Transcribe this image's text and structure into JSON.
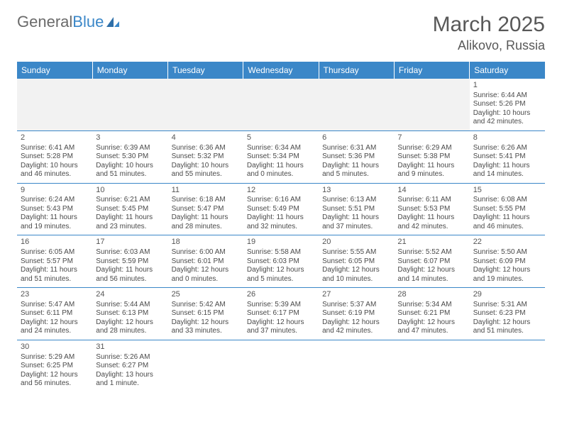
{
  "logo": {
    "part1": "General",
    "part2": "Blue"
  },
  "title": "March 2025",
  "location": "Alikovo, Russia",
  "header_color": "#3b87c8",
  "weekdays": [
    "Sunday",
    "Monday",
    "Tuesday",
    "Wednesday",
    "Thursday",
    "Friday",
    "Saturday"
  ],
  "weeks": [
    [
      null,
      null,
      null,
      null,
      null,
      null,
      {
        "n": "1",
        "sr": "Sunrise: 6:44 AM",
        "ss": "Sunset: 5:26 PM",
        "d1": "Daylight: 10 hours",
        "d2": "and 42 minutes."
      }
    ],
    [
      {
        "n": "2",
        "sr": "Sunrise: 6:41 AM",
        "ss": "Sunset: 5:28 PM",
        "d1": "Daylight: 10 hours",
        "d2": "and 46 minutes."
      },
      {
        "n": "3",
        "sr": "Sunrise: 6:39 AM",
        "ss": "Sunset: 5:30 PM",
        "d1": "Daylight: 10 hours",
        "d2": "and 51 minutes."
      },
      {
        "n": "4",
        "sr": "Sunrise: 6:36 AM",
        "ss": "Sunset: 5:32 PM",
        "d1": "Daylight: 10 hours",
        "d2": "and 55 minutes."
      },
      {
        "n": "5",
        "sr": "Sunrise: 6:34 AM",
        "ss": "Sunset: 5:34 PM",
        "d1": "Daylight: 11 hours",
        "d2": "and 0 minutes."
      },
      {
        "n": "6",
        "sr": "Sunrise: 6:31 AM",
        "ss": "Sunset: 5:36 PM",
        "d1": "Daylight: 11 hours",
        "d2": "and 5 minutes."
      },
      {
        "n": "7",
        "sr": "Sunrise: 6:29 AM",
        "ss": "Sunset: 5:38 PM",
        "d1": "Daylight: 11 hours",
        "d2": "and 9 minutes."
      },
      {
        "n": "8",
        "sr": "Sunrise: 6:26 AM",
        "ss": "Sunset: 5:41 PM",
        "d1": "Daylight: 11 hours",
        "d2": "and 14 minutes."
      }
    ],
    [
      {
        "n": "9",
        "sr": "Sunrise: 6:24 AM",
        "ss": "Sunset: 5:43 PM",
        "d1": "Daylight: 11 hours",
        "d2": "and 19 minutes."
      },
      {
        "n": "10",
        "sr": "Sunrise: 6:21 AM",
        "ss": "Sunset: 5:45 PM",
        "d1": "Daylight: 11 hours",
        "d2": "and 23 minutes."
      },
      {
        "n": "11",
        "sr": "Sunrise: 6:18 AM",
        "ss": "Sunset: 5:47 PM",
        "d1": "Daylight: 11 hours",
        "d2": "and 28 minutes."
      },
      {
        "n": "12",
        "sr": "Sunrise: 6:16 AM",
        "ss": "Sunset: 5:49 PM",
        "d1": "Daylight: 11 hours",
        "d2": "and 32 minutes."
      },
      {
        "n": "13",
        "sr": "Sunrise: 6:13 AM",
        "ss": "Sunset: 5:51 PM",
        "d1": "Daylight: 11 hours",
        "d2": "and 37 minutes."
      },
      {
        "n": "14",
        "sr": "Sunrise: 6:11 AM",
        "ss": "Sunset: 5:53 PM",
        "d1": "Daylight: 11 hours",
        "d2": "and 42 minutes."
      },
      {
        "n": "15",
        "sr": "Sunrise: 6:08 AM",
        "ss": "Sunset: 5:55 PM",
        "d1": "Daylight: 11 hours",
        "d2": "and 46 minutes."
      }
    ],
    [
      {
        "n": "16",
        "sr": "Sunrise: 6:05 AM",
        "ss": "Sunset: 5:57 PM",
        "d1": "Daylight: 11 hours",
        "d2": "and 51 minutes."
      },
      {
        "n": "17",
        "sr": "Sunrise: 6:03 AM",
        "ss": "Sunset: 5:59 PM",
        "d1": "Daylight: 11 hours",
        "d2": "and 56 minutes."
      },
      {
        "n": "18",
        "sr": "Sunrise: 6:00 AM",
        "ss": "Sunset: 6:01 PM",
        "d1": "Daylight: 12 hours",
        "d2": "and 0 minutes."
      },
      {
        "n": "19",
        "sr": "Sunrise: 5:58 AM",
        "ss": "Sunset: 6:03 PM",
        "d1": "Daylight: 12 hours",
        "d2": "and 5 minutes."
      },
      {
        "n": "20",
        "sr": "Sunrise: 5:55 AM",
        "ss": "Sunset: 6:05 PM",
        "d1": "Daylight: 12 hours",
        "d2": "and 10 minutes."
      },
      {
        "n": "21",
        "sr": "Sunrise: 5:52 AM",
        "ss": "Sunset: 6:07 PM",
        "d1": "Daylight: 12 hours",
        "d2": "and 14 minutes."
      },
      {
        "n": "22",
        "sr": "Sunrise: 5:50 AM",
        "ss": "Sunset: 6:09 PM",
        "d1": "Daylight: 12 hours",
        "d2": "and 19 minutes."
      }
    ],
    [
      {
        "n": "23",
        "sr": "Sunrise: 5:47 AM",
        "ss": "Sunset: 6:11 PM",
        "d1": "Daylight: 12 hours",
        "d2": "and 24 minutes."
      },
      {
        "n": "24",
        "sr": "Sunrise: 5:44 AM",
        "ss": "Sunset: 6:13 PM",
        "d1": "Daylight: 12 hours",
        "d2": "and 28 minutes."
      },
      {
        "n": "25",
        "sr": "Sunrise: 5:42 AM",
        "ss": "Sunset: 6:15 PM",
        "d1": "Daylight: 12 hours",
        "d2": "and 33 minutes."
      },
      {
        "n": "26",
        "sr": "Sunrise: 5:39 AM",
        "ss": "Sunset: 6:17 PM",
        "d1": "Daylight: 12 hours",
        "d2": "and 37 minutes."
      },
      {
        "n": "27",
        "sr": "Sunrise: 5:37 AM",
        "ss": "Sunset: 6:19 PM",
        "d1": "Daylight: 12 hours",
        "d2": "and 42 minutes."
      },
      {
        "n": "28",
        "sr": "Sunrise: 5:34 AM",
        "ss": "Sunset: 6:21 PM",
        "d1": "Daylight: 12 hours",
        "d2": "and 47 minutes."
      },
      {
        "n": "29",
        "sr": "Sunrise: 5:31 AM",
        "ss": "Sunset: 6:23 PM",
        "d1": "Daylight: 12 hours",
        "d2": "and 51 minutes."
      }
    ],
    [
      {
        "n": "30",
        "sr": "Sunrise: 5:29 AM",
        "ss": "Sunset: 6:25 PM",
        "d1": "Daylight: 12 hours",
        "d2": "and 56 minutes."
      },
      {
        "n": "31",
        "sr": "Sunrise: 5:26 AM",
        "ss": "Sunset: 6:27 PM",
        "d1": "Daylight: 13 hours",
        "d2": "and 1 minute."
      },
      null,
      null,
      null,
      null,
      null
    ]
  ]
}
